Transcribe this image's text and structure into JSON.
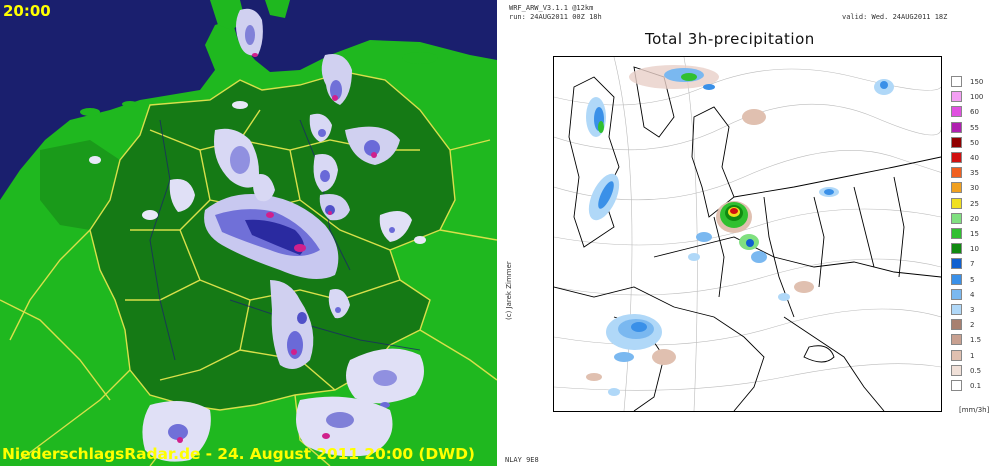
{
  "radar": {
    "time": "20:00",
    "footer": "NiederschlagsRadar.de - 24. August 2011 20:00 (DWD)",
    "colors": {
      "sea": "#1a1f6e",
      "land_light": "#1fb81f",
      "land_dark": "#157a15",
      "borders": "#d8e04a"
    }
  },
  "wrf": {
    "header_model": "WRF_ARW_V3.1.1 @12km",
    "header_run": "run: 24AUG2011 00Z    18h",
    "header_valid": "valid: Wed. 24AUG2011 18Z",
    "title": "Total 3h-precipitation",
    "credit": "(c) Jarek Zimmer",
    "unit": "[mm/3h]",
    "footer": "NLAY 9E8",
    "legend": [
      {
        "label": "150",
        "color": "#ffffff"
      },
      {
        "label": "100",
        "color": "#f4a0f4"
      },
      {
        "label": "60",
        "color": "#e050e0"
      },
      {
        "label": "55",
        "color": "#b020b0"
      },
      {
        "label": "50",
        "color": "#900000"
      },
      {
        "label": "40",
        "color": "#d01010"
      },
      {
        "label": "35",
        "color": "#f06020"
      },
      {
        "label": "30",
        "color": "#f0a020"
      },
      {
        "label": "25",
        "color": "#f0e020"
      },
      {
        "label": "20",
        "color": "#80e080"
      },
      {
        "label": "15",
        "color": "#30c030"
      },
      {
        "label": "10",
        "color": "#108a10"
      },
      {
        "label": "7",
        "color": "#1060d0"
      },
      {
        "label": "5",
        "color": "#3a90e8"
      },
      {
        "label": "4",
        "color": "#7ab8f0"
      },
      {
        "label": "3",
        "color": "#b0d8f8"
      },
      {
        "label": "2",
        "color": "#a88070"
      },
      {
        "label": "1.5",
        "color": "#c8a090"
      },
      {
        "label": "1",
        "color": "#e0c0b0"
      },
      {
        "label": "0.5",
        "color": "#f0e0d8"
      },
      {
        "label": "0.1",
        "color": "#ffffff"
      }
    ]
  }
}
